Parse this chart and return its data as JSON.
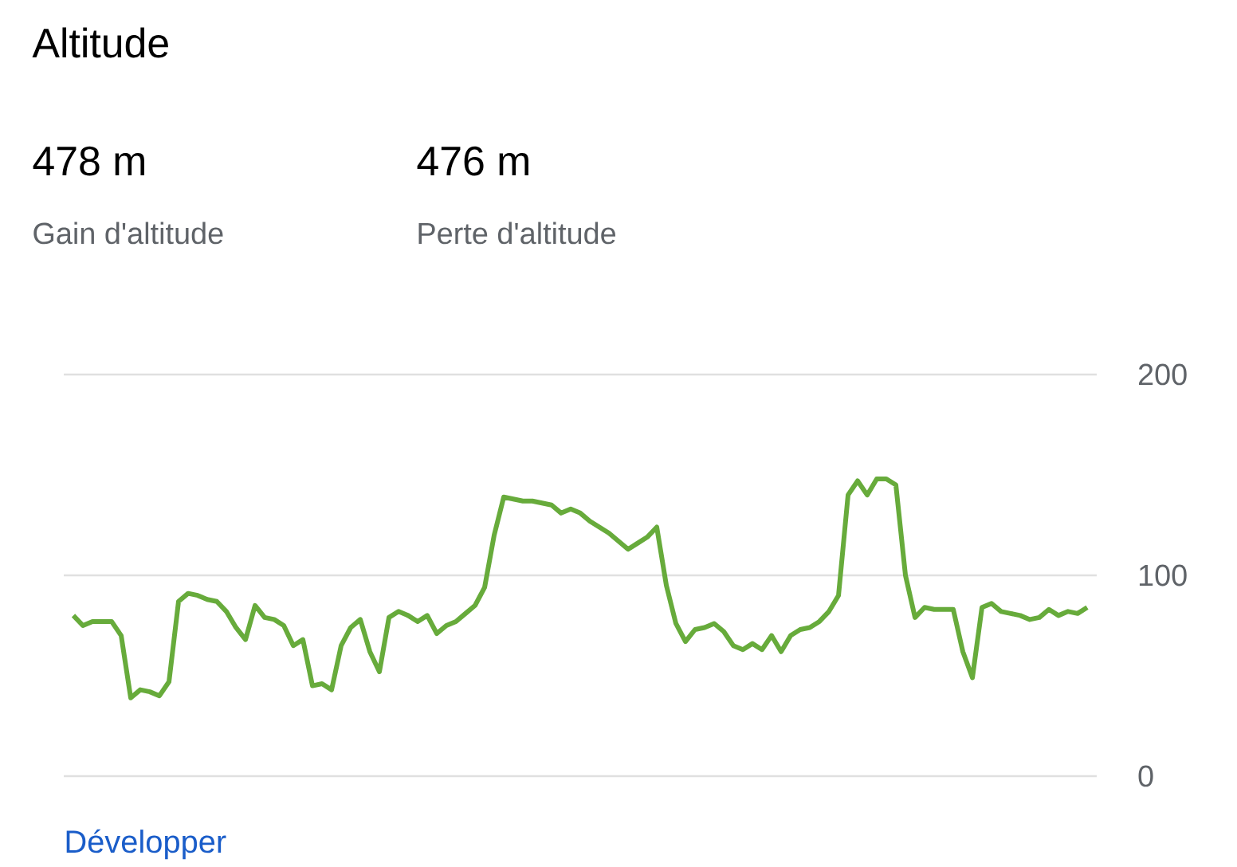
{
  "chart_data": {
    "type": "line",
    "title": "Altitude",
    "annotations": [
      "478 m",
      "Gain d'altitude",
      "476 m",
      "Perte d'altitude",
      "Développer"
    ],
    "categories": [
      null,
      null,
      null,
      null,
      null,
      null,
      null,
      null,
      null,
      null,
      null,
      null,
      null,
      null,
      null,
      null,
      null,
      null,
      null,
      null,
      null,
      null,
      null,
      null,
      null,
      null,
      null,
      null,
      null,
      null,
      null,
      null,
      null,
      null,
      null,
      null,
      null,
      null,
      null,
      null,
      null,
      null,
      null,
      null,
      null,
      null,
      null,
      null,
      null,
      null,
      null,
      null,
      null,
      null,
      null,
      null,
      null,
      null,
      null,
      null,
      null,
      null,
      null,
      null,
      null,
      null,
      null,
      null,
      null,
      null,
      null,
      null,
      null,
      null,
      null,
      null,
      null,
      null,
      null,
      null,
      null,
      null,
      null,
      null,
      null,
      null,
      null,
      null,
      null,
      null,
      null,
      null,
      null,
      null,
      null,
      null,
      null,
      null,
      null,
      null,
      null,
      null,
      null,
      null,
      null,
      null,
      null
    ],
    "values": [
      80,
      75,
      77,
      77,
      77,
      70,
      39,
      43,
      42,
      40,
      47,
      87,
      91,
      90,
      88,
      87,
      82,
      74,
      68,
      85,
      79,
      78,
      75,
      65,
      68,
      45,
      46,
      43,
      65,
      74,
      78,
      62,
      52,
      79,
      82,
      80,
      77,
      80,
      71,
      75,
      77,
      81,
      85,
      94,
      120,
      139,
      138,
      137,
      137,
      136,
      135,
      131,
      133,
      131,
      127,
      124,
      121,
      117,
      113,
      116,
      119,
      124,
      95,
      76,
      67,
      73,
      74,
      76,
      72,
      65,
      63,
      66,
      63,
      70,
      62,
      70,
      73,
      74,
      77,
      82,
      90,
      140,
      147,
      140,
      148,
      148,
      145,
      100,
      79,
      84,
      83,
      83,
      83,
      62,
      49,
      84,
      86,
      82,
      81,
      80,
      78,
      79,
      83,
      80,
      82,
      81,
      84
    ],
    "color": "#67ab3b",
    "ylim": [
      0,
      200
    ],
    "yticks": [
      0,
      100,
      200
    ],
    "grid": "y"
  }
}
